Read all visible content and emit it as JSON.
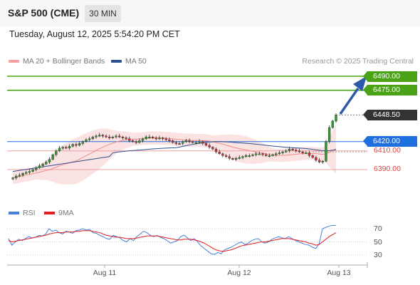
{
  "header": {
    "title": "S&P 500 (CME)",
    "timeframe": "30 MIN"
  },
  "datetime": "Tuesday, August 12, 2025 5:54:20 PM CET",
  "legend": {
    "ma20": {
      "label": "MA 20 + Bollinger Bands",
      "color": "#f08a8a"
    },
    "ma50": {
      "label": "MA 50",
      "color": "#2d4f8c"
    }
  },
  "credit": "Research © 2025 Trading Central",
  "rsi_legend": {
    "rsi": {
      "label": "RSI",
      "color": "#4a7fd6"
    },
    "ma9": {
      "label": "9MA",
      "color": "#e02020"
    }
  },
  "chart_data": {
    "type": "candlestick",
    "price_axis": {
      "range": [
        6370,
        6500
      ]
    },
    "x_axis": {
      "ticks": [
        "Aug 11",
        "Aug 12",
        "Aug 13"
      ]
    },
    "levels": [
      {
        "value": 6490.0,
        "label": "6490.00",
        "role": "resistance",
        "color": "#4aa316",
        "style": "tag"
      },
      {
        "value": 6475.0,
        "label": "6475.00",
        "role": "resistance",
        "color": "#4aa316",
        "style": "tag"
      },
      {
        "value": 6448.5,
        "label": "6448.50",
        "role": "last price",
        "color": "#333333",
        "style": "tag"
      },
      {
        "value": 6420.0,
        "label": "6420.00",
        "role": "pivot",
        "color": "#1f6fe0",
        "style": "tag"
      },
      {
        "value": 6410.0,
        "label": "6410.00",
        "role": "support",
        "color": "#e04040",
        "style": "text"
      },
      {
        "value": 6390.0,
        "label": "6390.00",
        "role": "support",
        "color": "#e04040",
        "style": "text"
      }
    ],
    "closes": [
      6381,
      6383,
      6384,
      6386,
      6387,
      6388,
      6390,
      6392,
      6394,
      6396,
      6398,
      6401,
      6406,
      6410,
      6413,
      6414,
      6413,
      6415,
      6417,
      6416,
      6418,
      6420,
      6422,
      6423,
      6425,
      6426,
      6427,
      6426,
      6425,
      6424,
      6425,
      6426,
      6425,
      6424,
      6423,
      6421,
      6420,
      6419,
      6421,
      6423,
      6425,
      6425,
      6424,
      6423,
      6424,
      6423,
      6422,
      6421,
      6419,
      6418,
      6418,
      6420,
      6421,
      6420,
      6419,
      6419,
      6420,
      6418,
      6416,
      6414,
      6412,
      6409,
      6407,
      6405,
      6404,
      6402,
      6401,
      6402,
      6403,
      6404,
      6405,
      6405,
      6406,
      6407,
      6407,
      6406,
      6405,
      6405,
      6406,
      6407,
      6408,
      6409,
      6410,
      6412,
      6411,
      6410,
      6409,
      6408,
      6408,
      6405,
      6403,
      6400,
      6398,
      6399,
      6420,
      6435,
      6442,
      6448.5
    ],
    "rsi": {
      "axis_ticks": [
        70,
        50,
        30
      ],
      "rsi": [
        55,
        45,
        50,
        54,
        52,
        55,
        58,
        56,
        57,
        60,
        59,
        62,
        70,
        66,
        68,
        64,
        62,
        66,
        65,
        63,
        67,
        68,
        70,
        68,
        69,
        64,
        63,
        60,
        58,
        55,
        54,
        60,
        58,
        56,
        52,
        50,
        55,
        52,
        58,
        62,
        66,
        64,
        60,
        58,
        60,
        57,
        55,
        52,
        48,
        50,
        52,
        58,
        60,
        56,
        52,
        55,
        50,
        44,
        40,
        36,
        32,
        31,
        34,
        32,
        38,
        40,
        42,
        45,
        48,
        50,
        46,
        48,
        52,
        54,
        55,
        50,
        48,
        50,
        54,
        56,
        58,
        56,
        55,
        58,
        55,
        52,
        50,
        48,
        46,
        45,
        42,
        40,
        47,
        70,
        72,
        74,
        75,
        75
      ],
      "ma9": [
        52,
        50,
        51,
        52,
        53,
        54,
        55,
        56,
        57,
        58,
        59,
        60,
        62,
        63,
        64,
        64,
        64,
        65,
        65,
        65,
        66,
        66,
        67,
        67,
        67,
        66,
        65,
        64,
        62,
        60,
        59,
        58,
        57,
        57,
        56,
        55,
        55,
        55,
        56,
        57,
        58,
        59,
        59,
        59,
        59,
        58,
        57,
        56,
        55,
        54,
        53,
        53,
        54,
        54,
        54,
        53,
        52,
        50,
        48,
        45,
        42,
        39,
        37,
        36,
        36,
        37,
        38,
        40,
        42,
        44,
        45,
        46,
        47,
        48,
        49,
        50,
        50,
        51,
        52,
        53,
        54,
        55,
        55,
        55,
        54,
        53,
        52,
        51,
        50,
        48,
        47,
        45,
        46,
        50,
        54,
        58,
        61,
        64
      ]
    }
  }
}
